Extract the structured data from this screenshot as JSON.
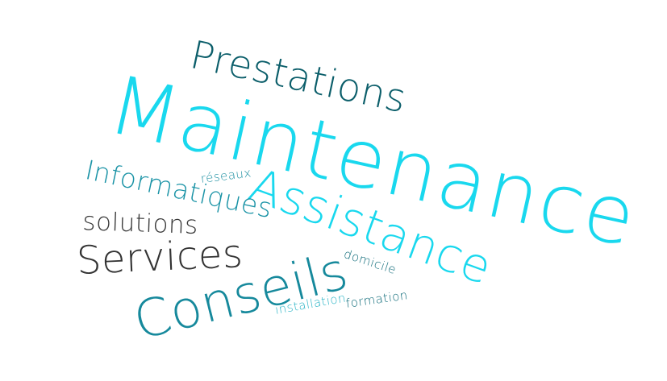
{
  "words": {
    "maintenance": {
      "text": "Maintenance",
      "color": "#19d8ee"
    },
    "prestations": {
      "text": "Prestations",
      "color": "#0b5e6a"
    },
    "assistance": {
      "text": "Assistance",
      "color": "#19d8ee"
    },
    "informatiques": {
      "text": "Informatiques",
      "color": "#1a93a6"
    },
    "reseaux": {
      "text": "réseaux",
      "color": "#1a8ea0"
    },
    "solutions": {
      "text": "solutions",
      "color": "#3a3a3a"
    },
    "services": {
      "text": "Services",
      "color": "#333333"
    },
    "conseils": {
      "text": "Conseils",
      "color": "#16899c"
    },
    "domicile": {
      "text": "domicile",
      "color": "#0d6a78"
    },
    "installation": {
      "text": "installation",
      "color": "#2ab4c6"
    },
    "formation": {
      "text": "formation",
      "color": "#0d6a78"
    }
  }
}
